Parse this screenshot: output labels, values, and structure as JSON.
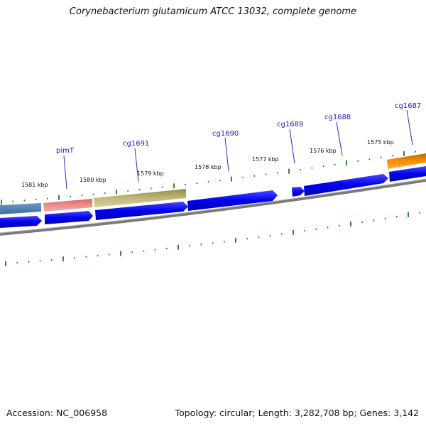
{
  "header": {
    "title": "Corynebacterium glutamicum ATCC 13032, complete genome"
  },
  "footer": {
    "accession": "Accession: NC_006958",
    "summary": "Topology: circular; Length: 3,282,708 bp; Genes: 3,142"
  },
  "ruler": {
    "labels": [
      "1581 kbp",
      "1580 kbp",
      "1579 kbp",
      "1578 kbp",
      "1577 kbp",
      "1576 kbp",
      "1575 kbp"
    ]
  },
  "gene_labels": [
    "pimT",
    "cg1691",
    "cg1690",
    "cg1689",
    "cg1688",
    "cg1687"
  ],
  "colors": {
    "cds_blue": "#0000ee",
    "steelblue_feature": "#4682b4",
    "salmon_feature": "#e87a7a",
    "khaki_feature": "#b8b070",
    "orange_feature": "#ff8c00",
    "tick_green": "#1a7a1a",
    "backbone_grey": "#808080",
    "label_blue": "#1a1acc"
  }
}
